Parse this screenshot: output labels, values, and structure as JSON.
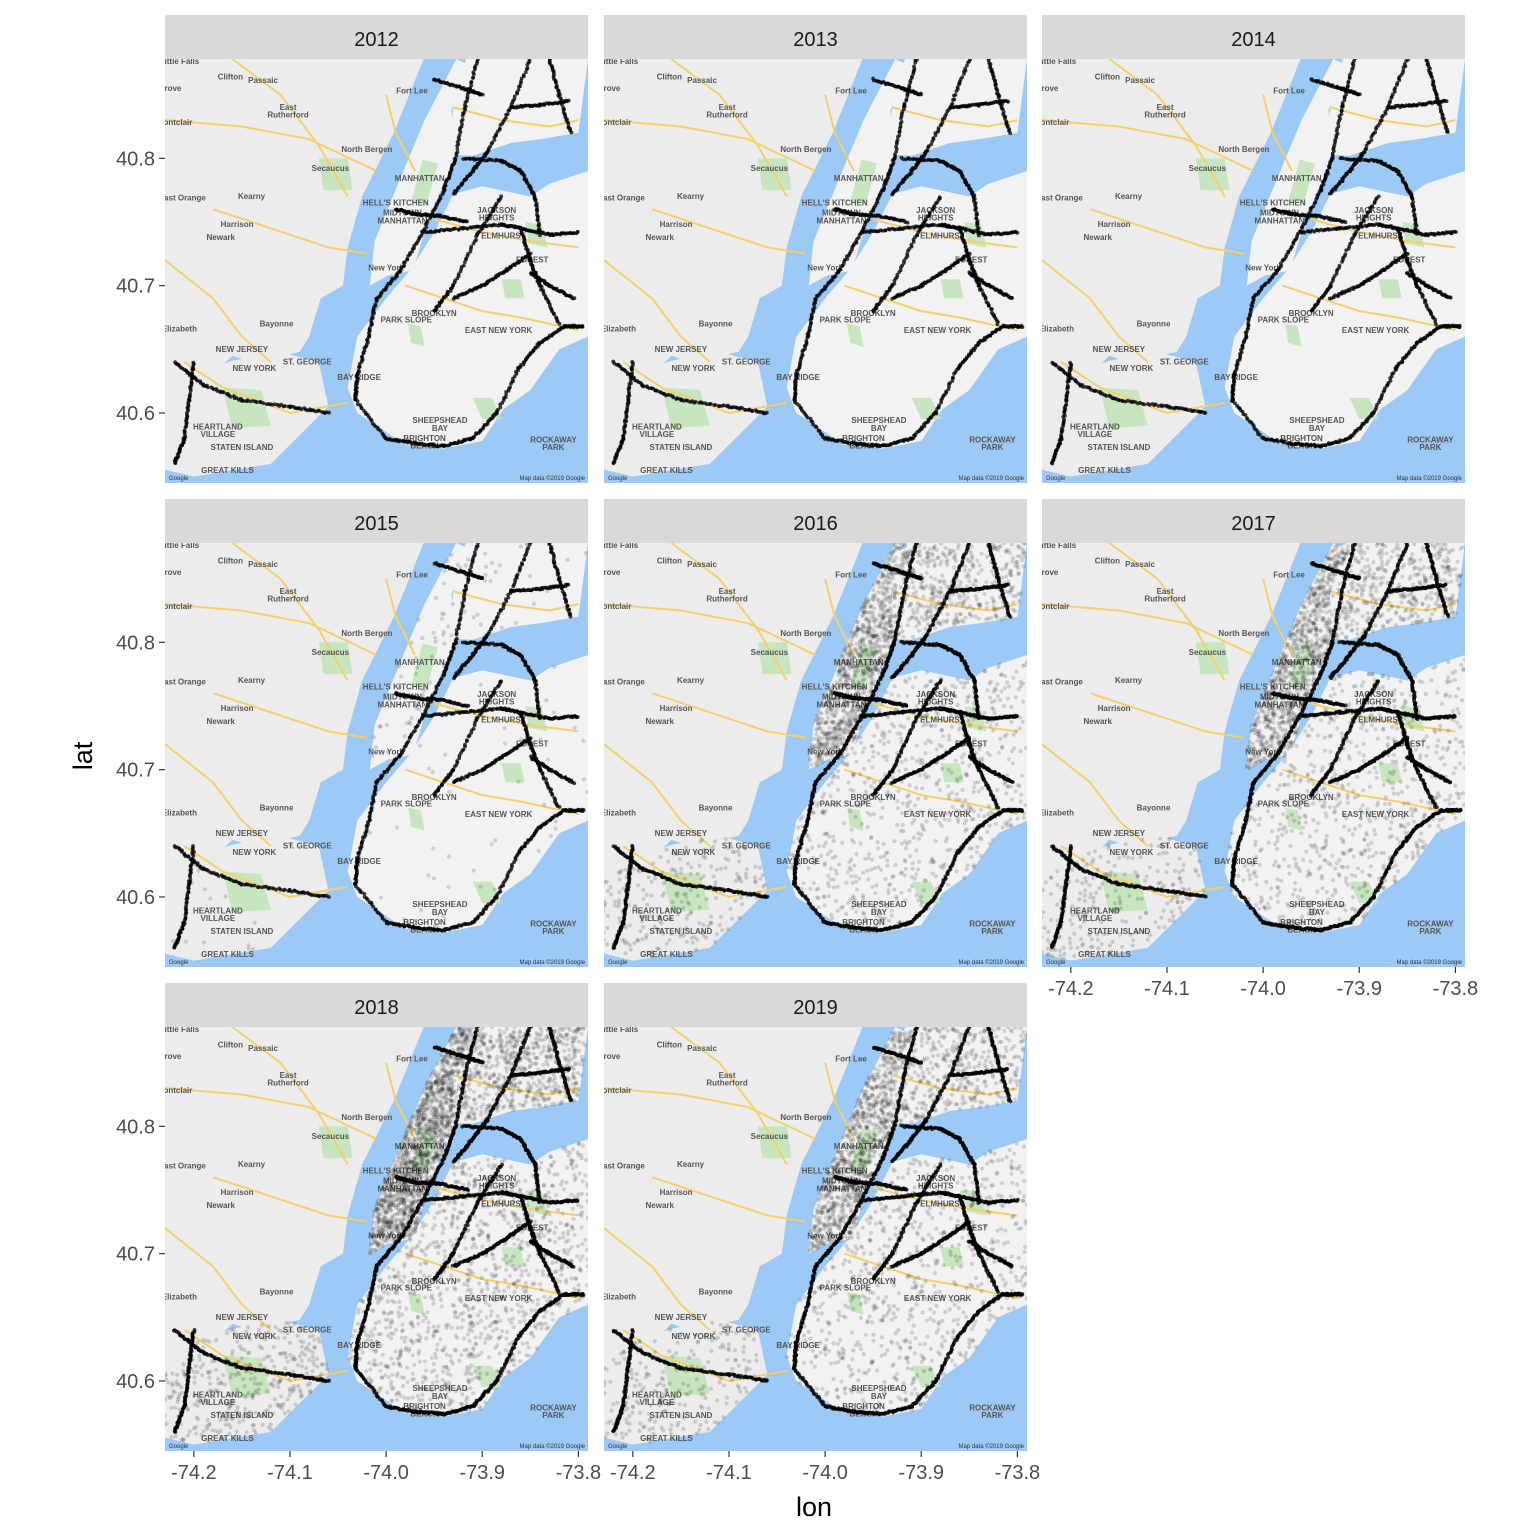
{
  "chart_data": {
    "type": "scatter",
    "layout": "faceted map, 3 columns x 3 rows",
    "xlabel": "lon",
    "ylabel": "lat",
    "xlim": [
      -74.23,
      -73.79
    ],
    "ylim": [
      40.545,
      40.878
    ],
    "x_ticks": [
      -74.2,
      -74.1,
      -74.0,
      -73.9,
      -73.8
    ],
    "x_tick_labels": [
      "-74.2",
      "-74.1",
      "-74.0",
      "-73.9",
      "-73.8"
    ],
    "y_ticks": [
      40.6,
      40.7,
      40.8
    ],
    "y_tick_labels": [
      "40.6",
      "40.7",
      "40.8"
    ],
    "point_color": "#000000",
    "point_alpha": 0.15,
    "basemap": {
      "attribution": "Map data ©2019 Google",
      "logo": "Google",
      "labels": [
        {
          "text": "Little Falls",
          "lon": -74.215,
          "lat": 40.874
        },
        {
          "text": "Clifton",
          "lon": -74.162,
          "lat": 40.862
        },
        {
          "text": "Passaic",
          "lon": -74.128,
          "lat": 40.859
        },
        {
          "text": "Grove",
          "lon": -74.225,
          "lat": 40.853
        },
        {
          "text": "Fort Lee",
          "lon": -73.973,
          "lat": 40.851
        },
        {
          "text": "East",
          "lon": -74.102,
          "lat": 40.838
        },
        {
          "text": "Rutherford",
          "lon": -74.102,
          "lat": 40.832
        },
        {
          "text": "Montclair",
          "lon": -74.22,
          "lat": 40.826
        },
        {
          "text": "North Bergen",
          "lon": -74.02,
          "lat": 40.805
        },
        {
          "text": "Secaucus",
          "lon": -74.058,
          "lat": 40.79
        },
        {
          "text": "MANHATTAN",
          "lon": -73.965,
          "lat": 40.782
        },
        {
          "text": "East Orange",
          "lon": -74.212,
          "lat": 40.767
        },
        {
          "text": "Kearny",
          "lon": -74.14,
          "lat": 40.768
        },
        {
          "text": "HELL'S KITCHEN",
          "lon": -73.99,
          "lat": 40.763
        },
        {
          "text": "MIDTOWN",
          "lon": -73.983,
          "lat": 40.755
        },
        {
          "text": "MANHATTAN",
          "lon": -73.983,
          "lat": 40.749
        },
        {
          "text": "JACKSON",
          "lon": -73.885,
          "lat": 40.757
        },
        {
          "text": "HEIGHTS",
          "lon": -73.885,
          "lat": 40.751
        },
        {
          "text": "Harrison",
          "lon": -74.155,
          "lat": 40.746
        },
        {
          "text": "ELMHURST",
          "lon": -73.878,
          "lat": 40.737
        },
        {
          "text": "Newark",
          "lon": -74.172,
          "lat": 40.736
        },
        {
          "text": "New York",
          "lon": -74.0,
          "lat": 40.712
        },
        {
          "text": "FOREST",
          "lon": -73.848,
          "lat": 40.718
        },
        {
          "text": "BROOKLYN",
          "lon": -73.95,
          "lat": 40.676
        },
        {
          "text": "PARK SLOPE",
          "lon": -73.979,
          "lat": 40.671
        },
        {
          "text": "Bayonne",
          "lon": -74.114,
          "lat": 40.668
        },
        {
          "text": "EAST NEW YORK",
          "lon": -73.883,
          "lat": 40.663
        },
        {
          "text": "Elizabeth",
          "lon": -74.215,
          "lat": 40.664
        },
        {
          "text": "NEW JERSEY",
          "lon": -74.15,
          "lat": 40.648
        },
        {
          "text": "NEW YORK",
          "lon": -74.137,
          "lat": 40.633
        },
        {
          "text": "ST. GEORGE",
          "lon": -74.082,
          "lat": 40.638
        },
        {
          "text": "BAY RIDGE",
          "lon": -74.028,
          "lat": 40.626
        },
        {
          "text": "SHEEPSHEAD",
          "lon": -73.944,
          "lat": 40.592
        },
        {
          "text": "BAY",
          "lon": -73.944,
          "lat": 40.586
        },
        {
          "text": "HEARTLAND",
          "lon": -74.175,
          "lat": 40.587
        },
        {
          "text": "VILLAGE",
          "lon": -74.175,
          "lat": 40.581
        },
        {
          "text": "STATEN ISLAND",
          "lon": -74.15,
          "lat": 40.571
        },
        {
          "text": "BRIGHTON",
          "lon": -73.96,
          "lat": 40.578
        },
        {
          "text": "BEACH",
          "lon": -73.96,
          "lat": 40.572
        },
        {
          "text": "ROCKAWAY",
          "lon": -73.826,
          "lat": 40.577
        },
        {
          "text": "PARK",
          "lon": -73.826,
          "lat": 40.571
        },
        {
          "text": "GREAT KILLS",
          "lon": -74.165,
          "lat": 40.553
        }
      ]
    },
    "panels": [
      {
        "title": "2012",
        "density": "sparse",
        "description": "points concentrated along subway / highway routes"
      },
      {
        "title": "2013",
        "density": "sparse",
        "description": "points concentrated along subway / highway routes"
      },
      {
        "title": "2014",
        "density": "sparse",
        "description": "points concentrated along subway / highway routes"
      },
      {
        "title": "2015",
        "density": "sparse-plus",
        "description": "routes plus a few scattered points in Queens and Brooklyn"
      },
      {
        "title": "2016",
        "density": "dense",
        "description": "dense coverage of Manhattan, Brooklyn, Queens, Bronx and Staten Island"
      },
      {
        "title": "2017",
        "density": "dense",
        "description": "dense coverage of all boroughs"
      },
      {
        "title": "2018",
        "density": "very dense",
        "description": "very dense coverage, Manhattan nearly solid"
      },
      {
        "title": "2019",
        "density": "dense",
        "description": "dense coverage of all boroughs"
      }
    ]
  }
}
